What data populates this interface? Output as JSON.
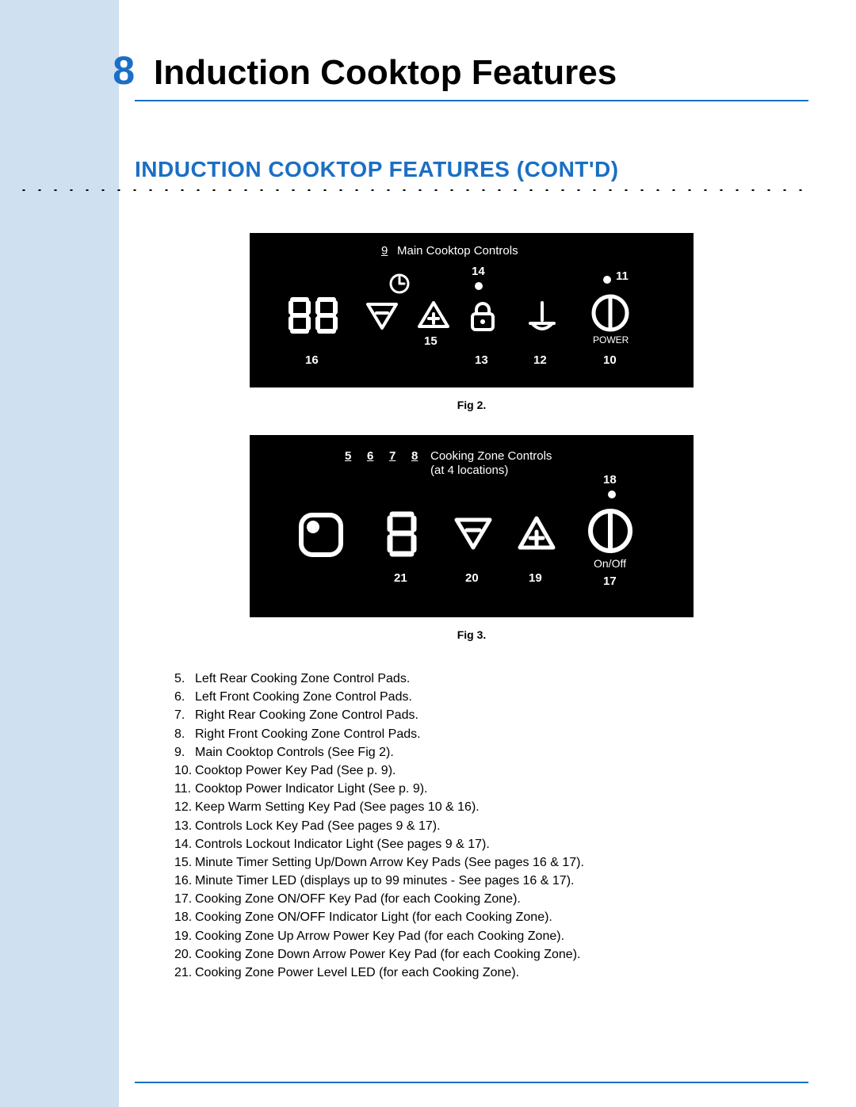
{
  "colors": {
    "accent": "#1b6fc4",
    "band": "#cfe0f0",
    "panel_bg": "#000000",
    "panel_fg": "#ffffff"
  },
  "header": {
    "page_number": "8",
    "title": "Induction Cooktop Features"
  },
  "section": {
    "title": "INDUCTION COOKTOP FEATURES (CONT'D)"
  },
  "panel_a": {
    "label_num": "9",
    "label_text": "Main Cooktop Controls",
    "callouts": {
      "c10": "10",
      "c11": "11",
      "c12": "12",
      "c13": "13",
      "c14": "14",
      "c15": "15",
      "c16": "16"
    },
    "power_label": "POWER",
    "caption": "Fig 2."
  },
  "panel_b": {
    "label_nums": {
      "n5": "5",
      "n6": "6",
      "n7": "7",
      "n8": "8"
    },
    "label_line1": "Cooking Zone Controls",
    "label_line2": "(at 4 locations)",
    "callouts": {
      "c17": "17",
      "c18": "18",
      "c19": "19",
      "c20": "20",
      "c21": "21"
    },
    "onoff_label": "On/Off",
    "caption": "Fig 3."
  },
  "legend": [
    {
      "n": "5.",
      "t": "Left Rear Cooking Zone Control Pads."
    },
    {
      "n": "6.",
      "t": "Left Front Cooking Zone Control Pads."
    },
    {
      "n": "7.",
      "t": "Right Rear Cooking Zone Control Pads."
    },
    {
      "n": "8.",
      "t": "Right Front Cooking Zone Control Pads."
    },
    {
      "n": "9.",
      "t": "Main Cooktop Controls (See Fig 2)."
    },
    {
      "n": "10.",
      "t": "Cooktop Power Key Pad (See p. 9)."
    },
    {
      "n": "11.",
      "t": "Cooktop Power Indicator Light (See p. 9)."
    },
    {
      "n": "12.",
      "t": "Keep Warm Setting Key Pad (See pages 10 & 16)."
    },
    {
      "n": "13.",
      "t": "Controls Lock Key Pad (See pages 9 & 17)."
    },
    {
      "n": "14.",
      "t": "Controls Lockout Indicator Light (See pages 9 & 17)."
    },
    {
      "n": "15.",
      "t": "Minute Timer Setting Up/Down Arrow Key Pads (See pages 16 & 17)."
    },
    {
      "n": "16.",
      "t": "Minute Timer LED (displays up to 99 minutes - See pages 16 & 17)."
    },
    {
      "n": "17.",
      "t": "Cooking Zone ON/OFF Key Pad (for each Cooking Zone)."
    },
    {
      "n": "18.",
      "t": "Cooking Zone ON/OFF Indicator Light (for each Cooking Zone)."
    },
    {
      "n": "19.",
      "t": "Cooking Zone Up Arrow Power Key Pad (for each Cooking Zone)."
    },
    {
      "n": "20.",
      "t": "Cooking Zone Down Arrow Power Key Pad (for each Cooking Zone)."
    },
    {
      "n": "21.",
      "t": "Cooking Zone Power Level LED (for each Cooking Zone)."
    }
  ]
}
